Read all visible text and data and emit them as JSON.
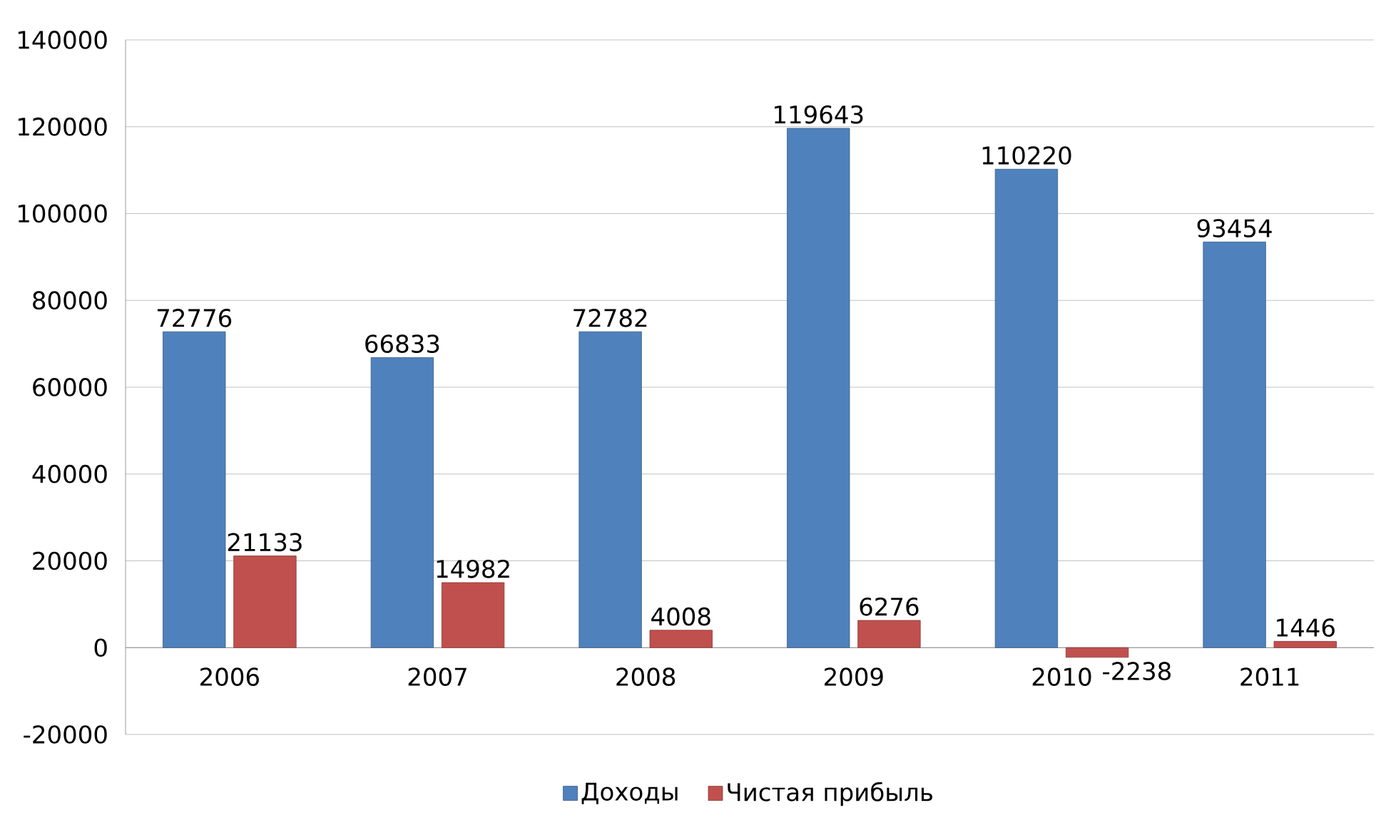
{
  "chart_data": {
    "type": "bar",
    "categories": [
      "2006",
      "2007",
      "2008",
      "2009",
      "2010",
      "2011"
    ],
    "series": [
      {
        "name": "Доходы",
        "color": "#4f81bd",
        "values": [
          72776,
          66833,
          72782,
          119643,
          110220,
          93454
        ]
      },
      {
        "name": "Чистая прибыль",
        "color": "#c0504d",
        "values": [
          21133,
          14982,
          4008,
          6276,
          -2238,
          1446
        ]
      }
    ],
    "ylim": [
      -20000,
      140000
    ],
    "yticks": [
      -20000,
      0,
      20000,
      40000,
      60000,
      80000,
      100000,
      120000,
      140000
    ],
    "grid": "y",
    "legend": "bottom",
    "data_labels": true
  }
}
